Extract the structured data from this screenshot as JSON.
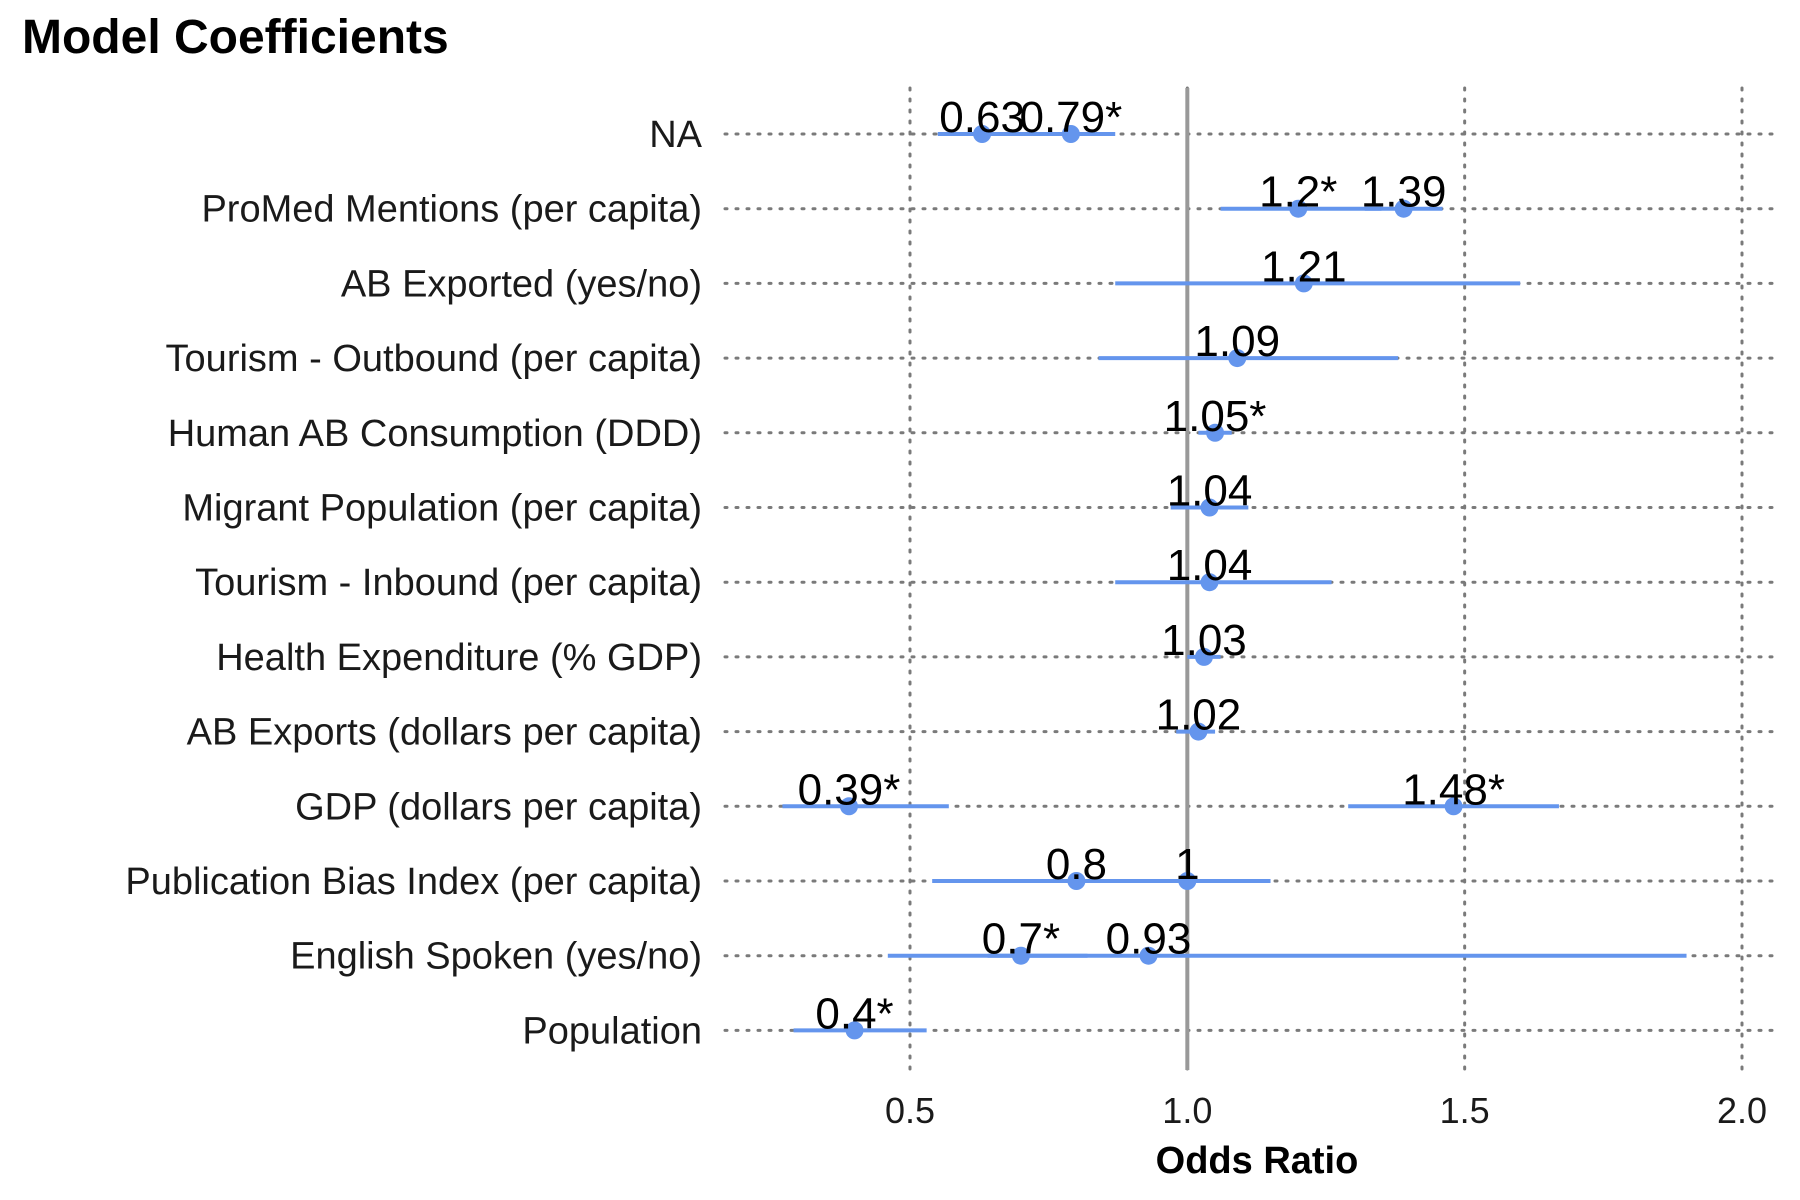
{
  "chart_data": {
    "type": "scatter",
    "title": "Model Coefficients",
    "xlabel": "Odds Ratio",
    "ylabel": "",
    "xlim": [
      0.5,
      2.0
    ],
    "xticks": [
      0.5,
      1.0,
      1.5,
      2.0
    ],
    "x_tick_labels": [
      "0.5",
      "1.0",
      "1.5",
      "2.0"
    ],
    "reference_line": 1.0,
    "grid": "dotted, major ticks",
    "point_color": "#6495ED",
    "reference_line_color": "#999999",
    "categories": [
      "NA",
      "ProMed Mentions (per capita)",
      "AB Exported (yes/no)",
      "Tourism - Outbound (per capita)",
      "Human AB Consumption (DDD)",
      "Migrant Population (per capita)",
      "Tourism - Inbound (per capita)",
      "Health Expenditure (% GDP)",
      "AB Exports (dollars per capita)",
      "GDP (dollars per capita)",
      "Publication Bias Index (per capita)",
      "English Spoken (yes/no)",
      "Population"
    ],
    "points": [
      {
        "category": 0,
        "estimate": 0.63,
        "low": 0.55,
        "high": 0.72,
        "label": "0.63"
      },
      {
        "category": 0,
        "estimate": 0.79,
        "low": 0.72,
        "high": 0.87,
        "label": "0.79*"
      },
      {
        "category": 1,
        "estimate": 1.2,
        "low": 1.06,
        "high": 1.35,
        "label": "1.2*"
      },
      {
        "category": 1,
        "estimate": 1.39,
        "low": 1.32,
        "high": 1.46,
        "label": "1.39"
      },
      {
        "category": 2,
        "estimate": 1.21,
        "low": 0.87,
        "high": 1.6,
        "label": "1.21"
      },
      {
        "category": 3,
        "estimate": 1.09,
        "low": 0.84,
        "high": 1.38,
        "label": "1.09"
      },
      {
        "category": 4,
        "estimate": 1.05,
        "low": 1.02,
        "high": 1.08,
        "label": "1.05*"
      },
      {
        "category": 5,
        "estimate": 1.04,
        "low": 0.97,
        "high": 1.11,
        "label": "1.04"
      },
      {
        "category": 6,
        "estimate": 1.04,
        "low": 0.87,
        "high": 1.26,
        "label": "1.04"
      },
      {
        "category": 7,
        "estimate": 1.03,
        "low": 1.0,
        "high": 1.06,
        "label": "1.03"
      },
      {
        "category": 8,
        "estimate": 1.02,
        "low": 0.98,
        "high": 1.05,
        "label": "1.02"
      },
      {
        "category": 9,
        "estimate": 0.39,
        "low": 0.27,
        "high": 0.57,
        "label": "0.39*"
      },
      {
        "category": 9,
        "estimate": 1.48,
        "low": 1.29,
        "high": 1.67,
        "label": "1.48*"
      },
      {
        "category": 10,
        "estimate": 0.8,
        "low": 0.54,
        "high": 1.0,
        "label": "0.8"
      },
      {
        "category": 10,
        "estimate": 1.0,
        "low": 0.86,
        "high": 1.15,
        "label": "1"
      },
      {
        "category": 11,
        "estimate": 0.7,
        "low": 0.46,
        "high": 0.82,
        "label": "0.7*"
      },
      {
        "category": 11,
        "estimate": 0.93,
        "low": 0.64,
        "high": 1.9,
        "label": "0.93"
      },
      {
        "category": 12,
        "estimate": 0.4,
        "low": 0.29,
        "high": 0.53,
        "label": "0.4*"
      }
    ]
  }
}
